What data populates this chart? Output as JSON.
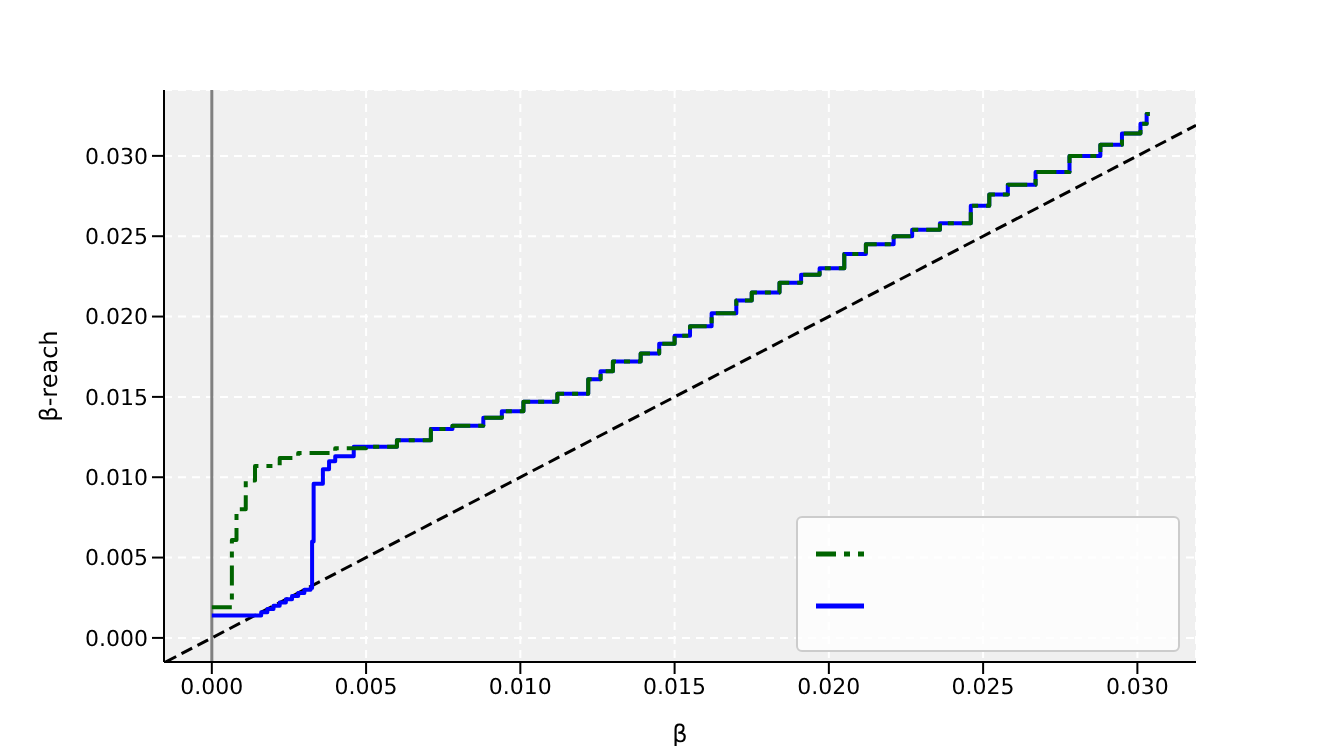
{
  "chart_data": {
    "type": "step",
    "xlabel": "β",
    "ylabel": "β-reach",
    "xlim": [
      -0.00155,
      0.0319
    ],
    "ylim": [
      -0.0015,
      0.0341
    ],
    "xticks": [
      {
        "value": 0,
        "label": "0.000"
      },
      {
        "value": 0.005,
        "label": "0.005"
      },
      {
        "value": 0.01,
        "label": "0.010"
      },
      {
        "value": 0.015,
        "label": "0.015"
      },
      {
        "value": 0.02,
        "label": "0.020"
      },
      {
        "value": 0.025,
        "label": "0.025"
      },
      {
        "value": 0.03,
        "label": "0.030"
      }
    ],
    "yticks": [
      {
        "value": 0,
        "label": "0.000"
      },
      {
        "value": 0.005,
        "label": "0.005"
      },
      {
        "value": 0.01,
        "label": "0.010"
      },
      {
        "value": 0.015,
        "label": "0.015"
      },
      {
        "value": 0.02,
        "label": "0.020"
      },
      {
        "value": 0.025,
        "label": "0.025"
      },
      {
        "value": 0.03,
        "label": "0.030"
      }
    ],
    "grid": true,
    "ref_lines": [
      {
        "axis": "x",
        "value": 0,
        "color": "#808080",
        "line_style": "solid"
      }
    ],
    "series": [
      {
        "color": "#006400",
        "line_style": "dashdot",
        "x": [
          0,
          0.00065,
          0.0008,
          0.0011,
          0.0014,
          0.0022,
          0.0028,
          0.004,
          0.005,
          0.006,
          0.0071,
          0.0078,
          0.0088,
          0.0094,
          0.0101,
          0.0112,
          0.0122,
          0.0126,
          0.013,
          0.0139,
          0.0145,
          0.015,
          0.0155,
          0.0162,
          0.017,
          0.0175,
          0.0184,
          0.0191,
          0.0197,
          0.0205,
          0.0212,
          0.0221,
          0.0227,
          0.0236,
          0.0246,
          0.0252,
          0.0258,
          0.0267,
          0.0278,
          0.0288,
          0.0295,
          0.0301,
          0.0303,
          0.0304
        ],
        "values": [
          0.0019,
          0.0061,
          0.008,
          0.0098,
          0.0107,
          0.0112,
          0.0115,
          0.0118,
          0.0119,
          0.0123,
          0.013,
          0.0132,
          0.0137,
          0.0141,
          0.0147,
          0.0152,
          0.0161,
          0.0166,
          0.0172,
          0.0177,
          0.0183,
          0.0188,
          0.0194,
          0.0202,
          0.021,
          0.0215,
          0.0221,
          0.0226,
          0.023,
          0.0239,
          0.0245,
          0.025,
          0.0254,
          0.0258,
          0.0269,
          0.0276,
          0.0282,
          0.029,
          0.03,
          0.0307,
          0.0314,
          0.032,
          0.0326,
          0.0326
        ]
      },
      {
        "color": "#0000ff",
        "line_style": "solid",
        "x": [
          0,
          0.0016,
          0.0018,
          0.002,
          0.0022,
          0.0024,
          0.0026,
          0.0028,
          0.003,
          0.0032,
          0.00325,
          0.0033,
          0.0036,
          0.0038,
          0.004,
          0.0046,
          0.005,
          0.006,
          0.0071,
          0.0078,
          0.0088,
          0.0094,
          0.0101,
          0.0112,
          0.0122,
          0.0126,
          0.013,
          0.0139,
          0.0145,
          0.015,
          0.0155,
          0.0162,
          0.017,
          0.0175,
          0.0184,
          0.0191,
          0.0197,
          0.0205,
          0.0212,
          0.0221,
          0.0227,
          0.0236,
          0.0246,
          0.0252,
          0.0258,
          0.0267,
          0.0278,
          0.0288,
          0.0295,
          0.0301,
          0.0303,
          0.0304
        ],
        "values": [
          0.0014,
          0.0016,
          0.0018,
          0.002,
          0.0022,
          0.0024,
          0.0026,
          0.0028,
          0.003,
          0.0031,
          0.006,
          0.0096,
          0.0105,
          0.011,
          0.0113,
          0.0119,
          0.0119,
          0.0123,
          0.013,
          0.0132,
          0.0137,
          0.0141,
          0.0147,
          0.0152,
          0.0161,
          0.0166,
          0.0172,
          0.0177,
          0.0183,
          0.0188,
          0.0194,
          0.0202,
          0.021,
          0.0215,
          0.0221,
          0.0226,
          0.023,
          0.0239,
          0.0245,
          0.025,
          0.0254,
          0.0258,
          0.0269,
          0.0276,
          0.0282,
          0.029,
          0.03,
          0.0307,
          0.0314,
          0.032,
          0.0326,
          0.0326
        ]
      },
      {
        "type": "line",
        "color": "#000000",
        "line_style": "dashed",
        "x": [
          -0.0015,
          0.0319
        ],
        "values": [
          -0.0015,
          0.0319
        ]
      }
    ]
  }
}
